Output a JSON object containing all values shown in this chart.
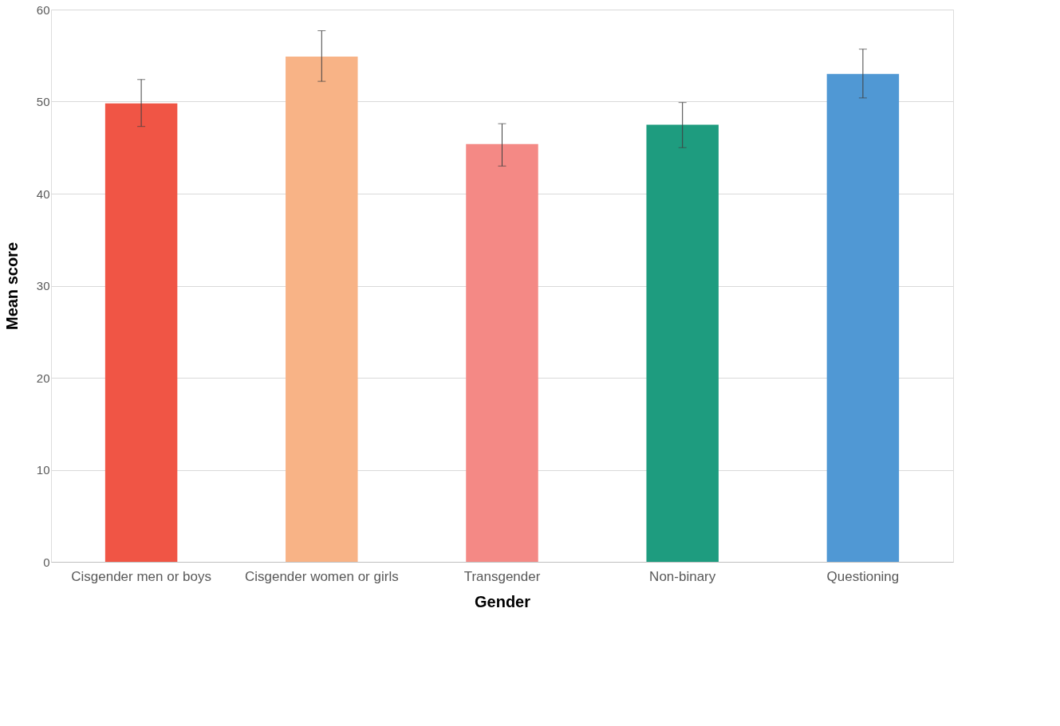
{
  "chart_data": {
    "type": "bar",
    "xlabel": "Gender",
    "ylabel": "Mean score",
    "categories": [
      "Cisgender men or boys",
      "Cisgender women or girls",
      "Transgender",
      "Non-binary",
      "Questioning"
    ],
    "values": [
      49.8,
      54.9,
      45.4,
      47.5,
      53.0
    ],
    "colors": [
      "#f05545",
      "#f8b386",
      "#f48985",
      "#1e9c7f",
      "#5098d4"
    ],
    "errors": [
      [
        47.3,
        52.4
      ],
      [
        52.2,
        57.7
      ],
      [
        43.0,
        47.6
      ],
      [
        45.0,
        49.9
      ],
      [
        50.4,
        55.7
      ]
    ],
    "ylim": [
      0,
      60
    ],
    "yticks": [
      0,
      10,
      20,
      30,
      40,
      50,
      60
    ],
    "grid": "y"
  }
}
